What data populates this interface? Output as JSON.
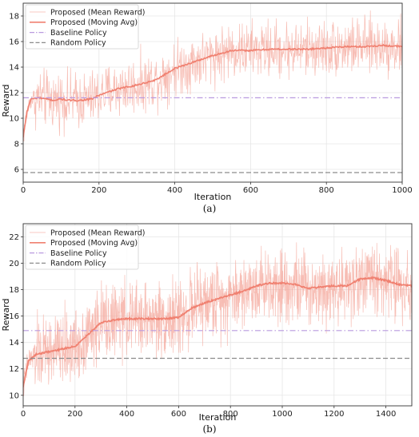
{
  "chart_data": [
    {
      "id": "a",
      "type": "line",
      "caption": "(a)",
      "xlabel": "Iteration",
      "ylabel": "Reward",
      "xlim": [
        0,
        1000
      ],
      "ylim": [
        5,
        19
      ],
      "xticks": [
        0,
        200,
        400,
        600,
        800,
        1000
      ],
      "yticks": [
        6,
        8,
        10,
        12,
        14,
        16,
        18
      ],
      "grid": true,
      "legend_position": "top-left",
      "series": [
        {
          "name": "Proposed (Mean Reward)",
          "kind": "noisy",
          "color": "#f4a79b",
          "x": [
            0,
            10,
            20,
            40,
            60,
            80,
            100,
            120,
            150,
            180,
            200,
            250,
            300,
            350,
            400,
            450,
            500,
            550,
            600,
            650,
            700,
            750,
            800,
            850,
            900,
            950,
            1000
          ],
          "values": [
            8.5,
            10.5,
            11.5,
            11.6,
            11.5,
            11.4,
            11.5,
            11.4,
            11.4,
            11.5,
            11.8,
            12.3,
            12.6,
            13.0,
            13.9,
            14.4,
            14.9,
            15.3,
            15.3,
            15.4,
            15.4,
            15.4,
            15.5,
            15.6,
            15.6,
            15.7,
            15.6
          ],
          "noise_amplitude": 1.6
        },
        {
          "name": "Proposed (Moving Avg)",
          "kind": "line",
          "color": "#f08070",
          "x": [
            0,
            10,
            20,
            40,
            60,
            80,
            100,
            120,
            150,
            180,
            200,
            250,
            300,
            350,
            400,
            450,
            500,
            550,
            600,
            650,
            700,
            750,
            800,
            850,
            900,
            950,
            1000
          ],
          "values": [
            8.5,
            10.5,
            11.5,
            11.6,
            11.5,
            11.4,
            11.5,
            11.4,
            11.4,
            11.5,
            11.8,
            12.3,
            12.6,
            13.0,
            13.9,
            14.4,
            14.9,
            15.3,
            15.3,
            15.4,
            15.4,
            15.4,
            15.5,
            15.6,
            15.6,
            15.7,
            15.6
          ]
        },
        {
          "name": "Baseline Policy",
          "kind": "hline",
          "color": "#b99adf",
          "dash": "dashdot",
          "value": 11.6
        },
        {
          "name": "Random Policy",
          "kind": "hline",
          "color": "#8c8c8c",
          "dash": "dashed",
          "value": 5.75
        }
      ]
    },
    {
      "id": "b",
      "type": "line",
      "caption": "(b)",
      "xlabel": "Iteration",
      "ylabel": "Reward",
      "xlim": [
        0,
        1500
      ],
      "ylim": [
        9.2,
        23
      ],
      "xticks": [
        0,
        200,
        400,
        600,
        800,
        1000,
        1200,
        1400
      ],
      "yticks": [
        10,
        12,
        14,
        16,
        18,
        20,
        22
      ],
      "grid": true,
      "legend_position": "top-left",
      "series": [
        {
          "name": "Proposed (Mean Reward)",
          "kind": "noisy",
          "color": "#f4a79b",
          "x": [
            0,
            20,
            50,
            100,
            150,
            200,
            250,
            300,
            350,
            400,
            450,
            500,
            550,
            600,
            650,
            700,
            750,
            800,
            850,
            900,
            950,
            1000,
            1050,
            1100,
            1150,
            1200,
            1250,
            1300,
            1350,
            1400,
            1450,
            1500
          ],
          "values": [
            10.6,
            12.6,
            13.1,
            13.3,
            13.5,
            13.7,
            14.6,
            15.5,
            15.7,
            15.8,
            15.8,
            15.8,
            15.8,
            15.9,
            16.6,
            17.0,
            17.3,
            17.6,
            17.9,
            18.3,
            18.5,
            18.5,
            18.4,
            18.1,
            18.2,
            18.3,
            18.3,
            18.8,
            18.9,
            18.7,
            18.4,
            18.3
          ],
          "noise_amplitude": 2.0
        },
        {
          "name": "Proposed (Moving Avg)",
          "kind": "line",
          "color": "#f08070",
          "x": [
            0,
            20,
            50,
            100,
            150,
            200,
            250,
            300,
            350,
            400,
            450,
            500,
            550,
            600,
            650,
            700,
            750,
            800,
            850,
            900,
            950,
            1000,
            1050,
            1100,
            1150,
            1200,
            1250,
            1300,
            1350,
            1400,
            1450,
            1500
          ],
          "values": [
            10.6,
            12.6,
            13.1,
            13.3,
            13.5,
            13.7,
            14.6,
            15.5,
            15.7,
            15.8,
            15.8,
            15.8,
            15.8,
            15.9,
            16.6,
            17.0,
            17.3,
            17.6,
            17.9,
            18.3,
            18.5,
            18.5,
            18.4,
            18.1,
            18.2,
            18.3,
            18.3,
            18.8,
            18.9,
            18.7,
            18.4,
            18.3
          ]
        },
        {
          "name": "Baseline Policy",
          "kind": "hline",
          "color": "#b99adf",
          "dash": "dashdot",
          "value": 14.9
        },
        {
          "name": "Random Policy",
          "kind": "hline",
          "color": "#8c8c8c",
          "dash": "dashed",
          "value": 12.8
        }
      ]
    }
  ]
}
